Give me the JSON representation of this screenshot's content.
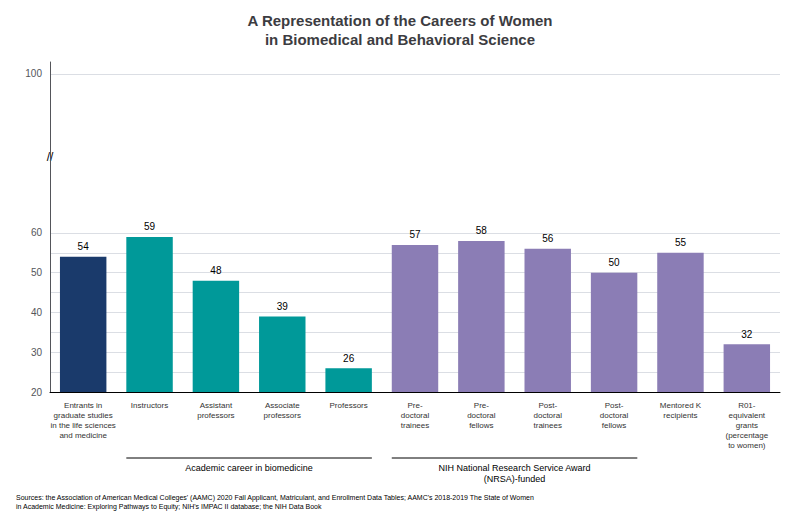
{
  "chart_data": {
    "type": "bar",
    "title": "A Representation of the Careers of Women\nin Biomedical and Behavioral Science",
    "categories": [
      "Entrants in\ngraduate studies\nin the life sciences\nand medicine",
      "Instructors",
      "Assistant\nprofessors",
      "Associate\nprofessors",
      "Professors",
      "Pre-\ndoctoral\ntrainees",
      "Pre-\ndoctoral\nfellows",
      "Post-\ndoctoral\ntrainees",
      "Post-\ndoctoral\nfellows",
      "Mentored K\nrecipients",
      "R01-\nequivalent\ngrants\n(percentage\nto women)"
    ],
    "values": [
      54,
      59,
      48,
      39,
      26,
      57,
      58,
      56,
      50,
      55,
      32
    ],
    "colors": [
      "#1a3a6b",
      "#009999",
      "#009999",
      "#009999",
      "#009999",
      "#8b7db5",
      "#8b7db5",
      "#8b7db5",
      "#8b7db5",
      "#8b7db5",
      "#8b7db5"
    ],
    "ylim": [
      20,
      103
    ],
    "yticks": [
      20,
      {
        "value": 25,
        "label": ""
      },
      30,
      {
        "value": 35,
        "label": ""
      },
      40,
      {
        "value": 45,
        "label": ""
      },
      50,
      {
        "value": 55,
        "label": ""
      },
      60,
      100
    ],
    "grid": true,
    "data_labels": true,
    "groups": [
      {
        "label": "Academic career in biomedicine",
        "categories": [
          "Instructors",
          "Assistant\nprofessors",
          "Associate\nprofessors",
          "Professors"
        ]
      },
      {
        "label": "NIH National Research Service Award\n(NRSA)-funded",
        "categories": [
          "Pre-\ndoctoral\ntrainees",
          "Pre-\ndoctoral\nfellows",
          "Post-\ndoctoral\ntrainees",
          "Post-\ndoctoral\nfellows"
        ]
      }
    ],
    "annotations": [
      {
        "text": "//",
        "y": 79
      }
    ],
    "source": "Sources: the Association of American Medical Colleges' (AAMC) 2020 Fall Applicant, Matriculant, and Enrollment Data Tables; AAMC's 2018-2019 The State of Women\nin Academic Medicine: Exploring Pathways to Equity; NIH's IMPAC II database; the NIH Data Book"
  }
}
